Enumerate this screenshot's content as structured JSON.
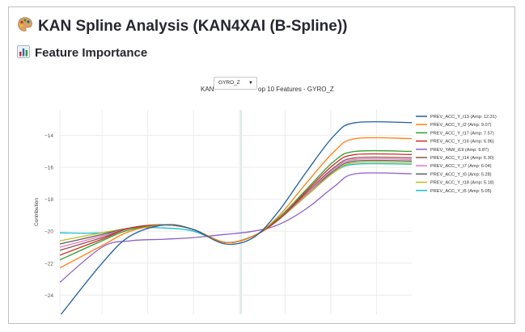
{
  "app": {
    "title": "KAN Spline Analysis (KAN4XAI (B-Spline))",
    "title_icon": "palette-emoji"
  },
  "section": {
    "title": "Feature Importance",
    "icon": "bar-chart-emoji"
  },
  "dropdown": {
    "selected": "GYRO_Z",
    "caret": "▼"
  },
  "chart_data": {
    "type": "line",
    "title_visible_prefix": "KAN",
    "title_visible_suffix": "op 10 Features - GYRO_Z",
    "ylabel": "Contribution",
    "xlabel": "",
    "yticks": [
      -14,
      -16,
      -18,
      -20,
      -22,
      -24
    ],
    "ylim": [
      -25.2,
      -12.4
    ],
    "grid": true,
    "legend_position": "right",
    "series": [
      {
        "name": "PREV_ACC_Y_t13 (Amp: 12.31)",
        "color": "#1f5fa0",
        "x": [
          0.0,
          0.12,
          0.2,
          0.3,
          0.38,
          0.47,
          0.55,
          0.62,
          0.7,
          0.78,
          0.84,
          1.0
        ],
        "y": [
          -25.3,
          -22.0,
          -20.3,
          -19.6,
          -19.9,
          -20.8,
          -20.4,
          -18.8,
          -16.3,
          -14.0,
          -13.2,
          -13.2
        ]
      },
      {
        "name": "PREV_ACC_Y_t2 (Amp: 9.07)",
        "color": "#ff7f0e",
        "x": [
          0.0,
          0.12,
          0.2,
          0.3,
          0.38,
          0.47,
          0.55,
          0.62,
          0.7,
          0.78,
          0.84,
          1.0
        ],
        "y": [
          -22.3,
          -20.9,
          -20.0,
          -19.6,
          -19.9,
          -20.7,
          -20.3,
          -19.1,
          -17.0,
          -15.0,
          -14.2,
          -14.2
        ]
      },
      {
        "name": "PREV_ACC_Y_t17 (Amp: 7.57)",
        "color": "#2ca02c",
        "x": [
          0.0,
          0.12,
          0.2,
          0.3,
          0.38,
          0.47,
          0.55,
          0.62,
          0.7,
          0.78,
          0.84,
          1.0
        ],
        "y": [
          -21.8,
          -20.6,
          -19.9,
          -19.6,
          -19.9,
          -20.7,
          -20.3,
          -19.2,
          -17.4,
          -15.6,
          -15.0,
          -15.0
        ]
      },
      {
        "name": "PREV_ACC_Y_t16 (Amp: 6.96)",
        "color": "#d62728",
        "x": [
          0.0,
          0.12,
          0.2,
          0.3,
          0.38,
          0.47,
          0.55,
          0.62,
          0.7,
          0.78,
          0.84,
          1.0
        ],
        "y": [
          -21.5,
          -20.5,
          -19.8,
          -19.6,
          -19.9,
          -20.7,
          -20.3,
          -19.3,
          -17.5,
          -15.8,
          -15.2,
          -15.2
        ]
      },
      {
        "name": "PREV_YAW_t19 (Amp: 6.87)",
        "color": "#8c5fc7",
        "x": [
          0.0,
          0.12,
          0.2,
          0.3,
          0.38,
          0.47,
          0.55,
          0.62,
          0.7,
          0.78,
          0.84,
          1.0
        ],
        "y": [
          -23.2,
          -21.0,
          -20.6,
          -20.5,
          -20.4,
          -20.2,
          -20.0,
          -19.6,
          -18.6,
          -17.2,
          -16.4,
          -16.4
        ]
      },
      {
        "name": "PREV_ACC_Y_t14 (Amp: 6.30)",
        "color": "#8c564b",
        "x": [
          0.0,
          0.12,
          0.2,
          0.3,
          0.38,
          0.47,
          0.55,
          0.62,
          0.7,
          0.78,
          0.84,
          1.0
        ],
        "y": [
          -21.2,
          -20.4,
          -19.8,
          -19.6,
          -19.9,
          -20.7,
          -20.3,
          -19.3,
          -17.6,
          -16.0,
          -15.4,
          -15.4
        ]
      },
      {
        "name": "PREV_ACC_Y_t7 (Amp: 6.04)",
        "color": "#e377c2",
        "x": [
          0.0,
          0.12,
          0.2,
          0.3,
          0.38,
          0.47,
          0.55,
          0.62,
          0.7,
          0.78,
          0.84,
          1.0
        ],
        "y": [
          -21.0,
          -20.3,
          -19.8,
          -19.6,
          -19.9,
          -20.7,
          -20.3,
          -19.3,
          -17.7,
          -16.1,
          -15.5,
          -15.5
        ]
      },
      {
        "name": "PREV_ACC_Y_t0 (Amp: 5.28)",
        "color": "#5a5a5a",
        "x": [
          0.0,
          0.12,
          0.2,
          0.3,
          0.38,
          0.47,
          0.55,
          0.62,
          0.7,
          0.78,
          0.84,
          1.0
        ],
        "y": [
          -20.8,
          -20.2,
          -19.8,
          -19.6,
          -19.9,
          -20.7,
          -20.3,
          -19.3,
          -17.7,
          -16.2,
          -15.6,
          -15.6
        ]
      },
      {
        "name": "PREV_ACC_Y_t18 (Amp: 5.18)",
        "color": "#bcbd22",
        "x": [
          0.0,
          0.12,
          0.2,
          0.3,
          0.38,
          0.47,
          0.55,
          0.62,
          0.7,
          0.78,
          0.84,
          1.0
        ],
        "y": [
          -20.6,
          -20.1,
          -19.8,
          -19.6,
          -19.9,
          -20.7,
          -20.3,
          -19.3,
          -17.8,
          -16.3,
          -15.7,
          -15.7
        ]
      },
      {
        "name": "PREV_ACC_Y_t5 (Amp: 5.05)",
        "color": "#17becf",
        "x": [
          0.0,
          0.12,
          0.2,
          0.3,
          0.38,
          0.47,
          0.55,
          0.62,
          0.7,
          0.78,
          0.84,
          1.0
        ],
        "y": [
          -20.1,
          -20.1,
          -19.8,
          -19.8,
          -20.0,
          -20.7,
          -20.3,
          -19.3,
          -17.8,
          -16.3,
          -15.8,
          -15.8
        ]
      }
    ]
  }
}
